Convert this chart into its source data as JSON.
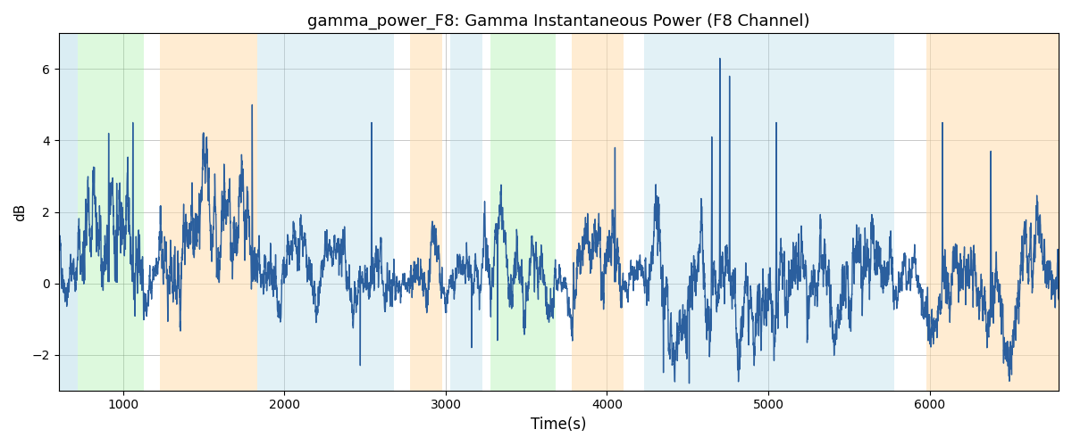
{
  "title": "gamma_power_F8: Gamma Instantaneous Power (F8 Channel)",
  "xlabel": "Time(s)",
  "ylabel": "dB",
  "xlim": [
    600,
    6800
  ],
  "ylim": [
    -3.0,
    7.0
  ],
  "line_color": "#2B5F9E",
  "line_width": 1.0,
  "grid": true,
  "background_color": "#ffffff",
  "colored_regions": [
    {
      "xmin": 600,
      "xmax": 720,
      "color": "#ADD8E6",
      "alpha": 0.45
    },
    {
      "xmin": 720,
      "xmax": 1130,
      "color": "#90EE90",
      "alpha": 0.3
    },
    {
      "xmin": 1230,
      "xmax": 1830,
      "color": "#FFDEAD",
      "alpha": 0.55
    },
    {
      "xmin": 1830,
      "xmax": 1950,
      "color": "#ADD8E6",
      "alpha": 0.35
    },
    {
      "xmin": 1950,
      "xmax": 2680,
      "color": "#ADD8E6",
      "alpha": 0.35
    },
    {
      "xmin": 2780,
      "xmax": 2980,
      "color": "#FFDEAD",
      "alpha": 0.55
    },
    {
      "xmin": 3030,
      "xmax": 3230,
      "color": "#ADD8E6",
      "alpha": 0.35
    },
    {
      "xmin": 3280,
      "xmax": 3680,
      "color": "#90EE90",
      "alpha": 0.3
    },
    {
      "xmin": 3780,
      "xmax": 4100,
      "color": "#FFDEAD",
      "alpha": 0.55
    },
    {
      "xmin": 4230,
      "xmax": 4680,
      "color": "#ADD8E6",
      "alpha": 0.35
    },
    {
      "xmin": 4680,
      "xmax": 5780,
      "color": "#ADD8E6",
      "alpha": 0.35
    },
    {
      "xmin": 5980,
      "xmax": 6800,
      "color": "#FFDEAD",
      "alpha": 0.55
    }
  ],
  "yticks": [
    -2,
    0,
    2,
    4,
    6
  ],
  "xticks": [
    1000,
    2000,
    3000,
    4000,
    5000,
    6000
  ],
  "seed": 42,
  "n_points": 6200,
  "t_start": 600,
  "t_end": 6800
}
